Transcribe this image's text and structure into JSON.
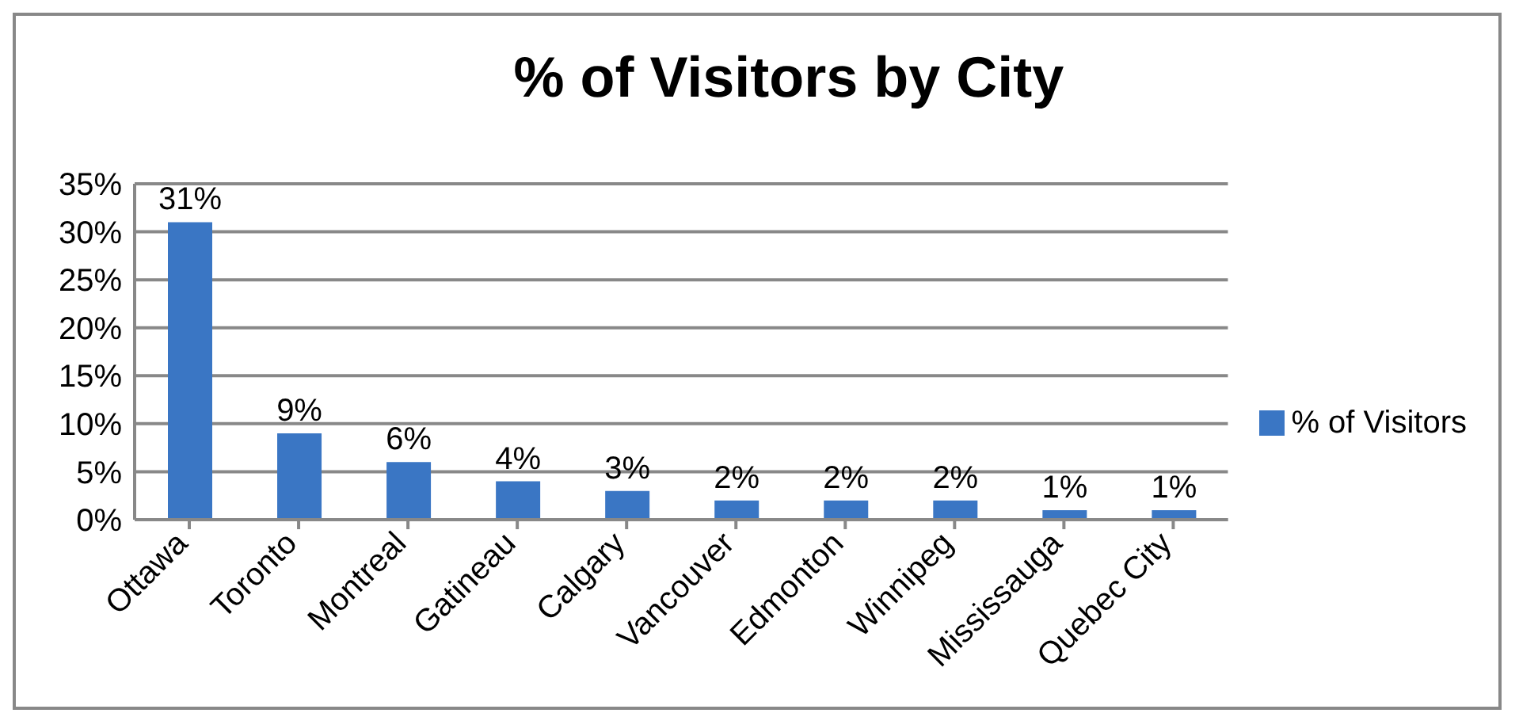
{
  "chart_data": {
    "type": "bar",
    "title": "% of Visitors by City",
    "categories": [
      "Ottawa",
      "Toronto",
      "Montreal",
      "Gatineau",
      "Calgary",
      "Vancouver",
      "Edmonton",
      "Winnipeg",
      "Mississauga",
      "Quebec City"
    ],
    "series": [
      {
        "name": "% of Visitors",
        "color": "#3a76c4",
        "values": [
          31,
          9,
          6,
          4,
          3,
          2,
          2,
          2,
          1,
          1
        ],
        "value_labels": [
          "31%",
          "9%",
          "6%",
          "4%",
          "3%",
          "2%",
          "2%",
          "2%",
          "1%",
          "1%"
        ]
      }
    ],
    "ylim": [
      0,
      35
    ],
    "yticks": [
      {
        "value": 0,
        "label": "0%"
      },
      {
        "value": 5,
        "label": "5%"
      },
      {
        "value": 10,
        "label": "10%"
      },
      {
        "value": 15,
        "label": "15%"
      },
      {
        "value": 20,
        "label": "20%"
      },
      {
        "value": 25,
        "label": "25%"
      },
      {
        "value": 30,
        "label": "30%"
      },
      {
        "value": 35,
        "label": "35%"
      }
    ],
    "grid": "y",
    "legend": "right"
  }
}
